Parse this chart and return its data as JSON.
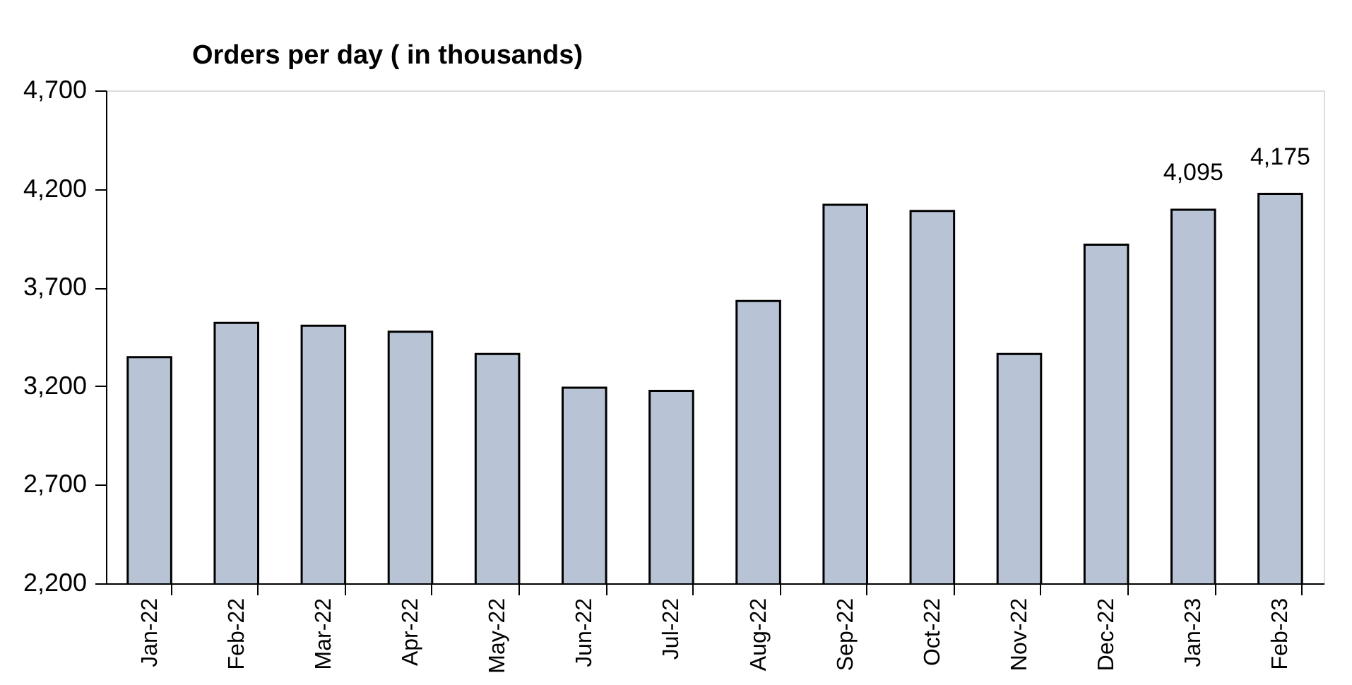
{
  "chart_data": {
    "type": "bar",
    "title": "Orders per day ( in thousands)",
    "categories": [
      "Jan-22",
      "Feb-22",
      "Mar-22",
      "Apr-22",
      "May-22",
      "Jun-22",
      "Jul-22",
      "Aug-22",
      "Sep-22",
      "Oct-22",
      "Nov-22",
      "Dec-22",
      "Jan-23",
      "Feb-23"
    ],
    "values": [
      3347,
      3521,
      3506,
      3476,
      3363,
      3192,
      3176,
      3632,
      4120,
      4088,
      3363,
      3917,
      4095,
      4175
    ],
    "value_labels": [
      null,
      null,
      null,
      null,
      null,
      null,
      null,
      null,
      null,
      null,
      null,
      null,
      "4,095",
      "4,175"
    ],
    "color": "#b8c4d6",
    "ylim": [
      2200,
      4700
    ],
    "yticks": [
      {
        "value": 2200,
        "label": "2,200"
      },
      {
        "value": 2700,
        "label": "2,700"
      },
      {
        "value": 3200,
        "label": "3,200"
      },
      {
        "value": 3700,
        "label": "3,700"
      },
      {
        "value": 4200,
        "label": "4,200"
      },
      {
        "value": 4700,
        "label": "4,700"
      }
    ],
    "grid": false
  }
}
